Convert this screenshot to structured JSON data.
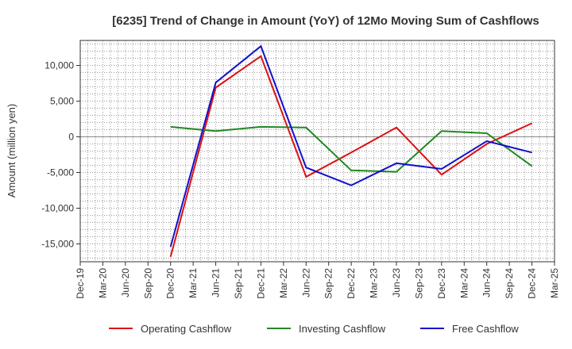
{
  "chart_data": {
    "type": "line",
    "title": "[6235]  Trend of Change in Amount (YoY) of 12Mo Moving Sum of Cashflows",
    "xlabel": "",
    "ylabel": "Amount (million yen)",
    "ylim": [
      -17500,
      13500
    ],
    "yticks": [
      10000,
      5000,
      0,
      -5000,
      -10000,
      -15000
    ],
    "ytick_labels": [
      "10,000",
      "5,000",
      "0",
      "-5,000",
      "-10,000",
      "-15,000"
    ],
    "categories": [
      "Dec-19",
      "Mar-20",
      "Jun-20",
      "Sep-20",
      "Dec-20",
      "Mar-21",
      "Jun-21",
      "Sep-21",
      "Dec-21",
      "Mar-22",
      "Jun-22",
      "Sep-22",
      "Dec-22",
      "Mar-23",
      "Jun-23",
      "Sep-23",
      "Dec-23",
      "Mar-24",
      "Jun-24",
      "Sep-24",
      "Dec-24",
      "Mar-25"
    ],
    "series": [
      {
        "name": "Operating Cashflow",
        "color": "#dd1111",
        "values": [
          null,
          null,
          null,
          null,
          -16800,
          null,
          6900,
          null,
          11300,
          null,
          -5600,
          null,
          -2200,
          null,
          1300,
          null,
          -5300,
          null,
          -1000,
          null,
          1900,
          null
        ]
      },
      {
        "name": "Investing Cashflow",
        "color": "#228822",
        "values": [
          null,
          null,
          null,
          null,
          1400,
          null,
          800,
          null,
          1400,
          null,
          1300,
          null,
          -4700,
          null,
          -4900,
          null,
          800,
          null,
          500,
          null,
          -4100,
          null
        ]
      },
      {
        "name": "Free Cashflow",
        "color": "#1111cc",
        "values": [
          null,
          null,
          null,
          null,
          -15400,
          null,
          7600,
          null,
          12700,
          null,
          -4300,
          null,
          -6800,
          null,
          -3700,
          null,
          -4500,
          null,
          -600,
          null,
          -2200,
          null
        ]
      }
    ],
    "grid": true,
    "legend_position": "bottom"
  }
}
